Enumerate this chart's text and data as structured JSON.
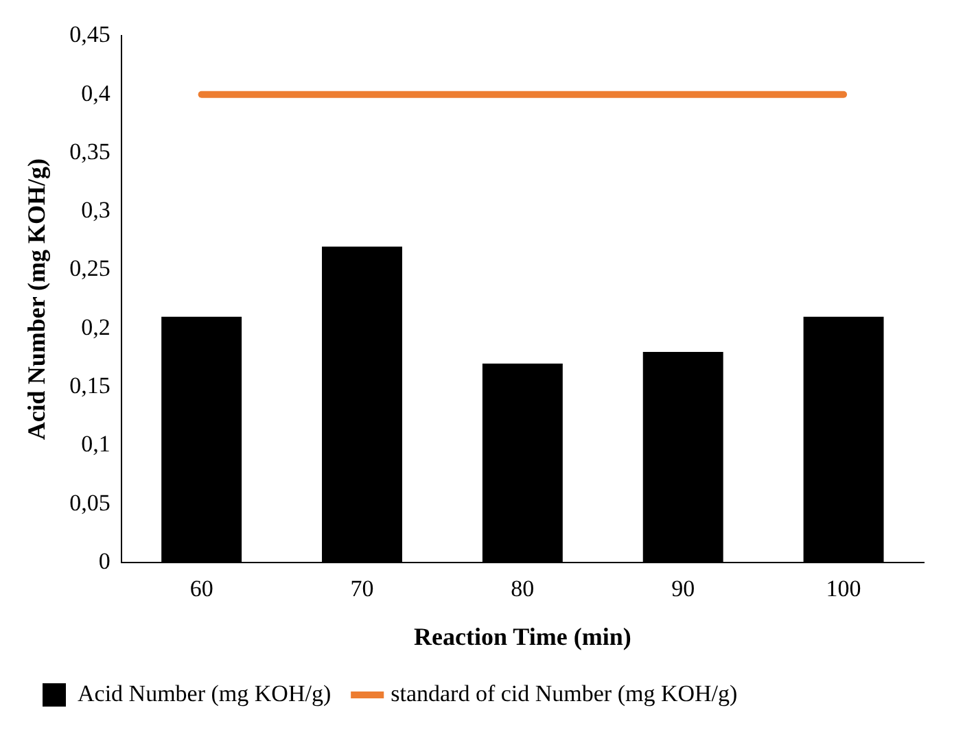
{
  "chart_data": {
    "type": "bar",
    "xlabel": "Reaction Time (min)",
    "ylabel": "Acid Number (mg KOH/g)",
    "categories": [
      "60",
      "70",
      "80",
      "90",
      "100"
    ],
    "series": [
      {
        "name": "Acid Number (mg KOH/g)",
        "color": "#000000",
        "values": [
          0.21,
          0.27,
          0.17,
          0.18,
          0.21
        ]
      },
      {
        "name": "standard of cid Number (mg KOH/g)",
        "type": "line",
        "color": "#ed7d31",
        "values": [
          0.4,
          0.4,
          0.4,
          0.4,
          0.4
        ]
      }
    ],
    "ylim": [
      0,
      0.45
    ],
    "yticks": [
      0,
      {
        "value": 0.05,
        "label": "0,05"
      },
      {
        "value": 0.1,
        "label": "0,1"
      },
      {
        "value": 0.15,
        "label": "0,15"
      },
      {
        "value": 0.2,
        "label": "0,2"
      },
      {
        "value": 0.25,
        "label": "0,25"
      },
      {
        "value": 0.3,
        "label": "0,3"
      },
      {
        "value": 0.35,
        "label": "0,35"
      },
      {
        "value": 0.4,
        "label": "0,4"
      },
      {
        "value": 0.45,
        "label": "0,45"
      }
    ],
    "grid": false,
    "legend": "bottom",
    "marker": "none"
  }
}
